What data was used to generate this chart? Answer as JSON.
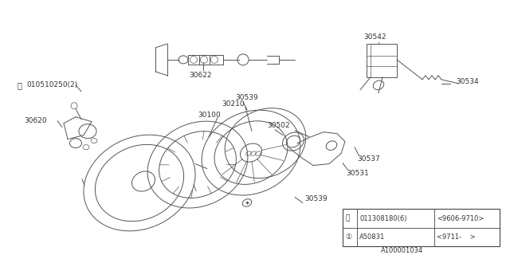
{
  "bg_color": "#ffffff",
  "line_color": "#555555",
  "diagram_id": "A100001034",
  "row1_sym": "B",
  "row1_col1": "011308180(6)",
  "row1_col2": "<9606-9710>",
  "row2_sym": "1",
  "row2_col1": "A50831",
  "row2_col2": "<9711-    >"
}
